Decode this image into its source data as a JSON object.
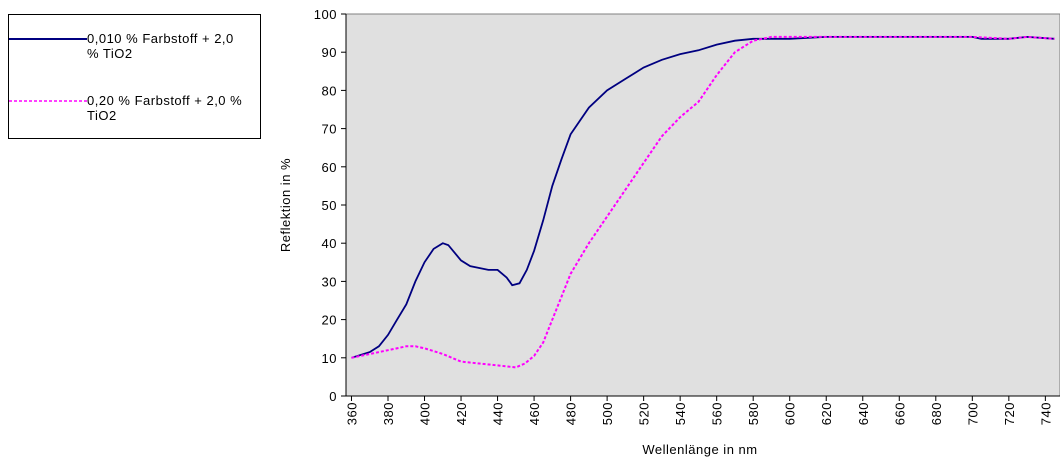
{
  "chart_data": {
    "type": "line",
    "xlabel": "Wellenlänge in nm",
    "ylabel": "Reflektion in %",
    "xlim": [
      357,
      748
    ],
    "ylim": [
      0,
      100
    ],
    "xticks": [
      360,
      380,
      400,
      420,
      440,
      460,
      480,
      500,
      520,
      540,
      560,
      580,
      600,
      620,
      640,
      660,
      680,
      700,
      720,
      740
    ],
    "yticks": [
      0,
      10,
      20,
      30,
      40,
      50,
      60,
      70,
      80,
      90,
      100
    ],
    "series": [
      {
        "name": "0,010 % Farbstoff + 2,0 % TiO2",
        "color": "#000080",
        "dash": false,
        "x": [
          360,
          370,
          375,
          380,
          385,
          390,
          395,
          400,
          405,
          410,
          413,
          420,
          425,
          430,
          435,
          440,
          445,
          448,
          452,
          456,
          460,
          465,
          470,
          475,
          480,
          485,
          490,
          500,
          510,
          520,
          530,
          540,
          550,
          560,
          570,
          580,
          600,
          620,
          640,
          660,
          680,
          700,
          705,
          720,
          730,
          745
        ],
        "values": [
          10,
          11.5,
          13,
          16,
          20,
          24,
          30,
          35,
          38.5,
          40,
          39.5,
          35.5,
          34,
          33.5,
          33,
          33,
          31,
          29,
          29.5,
          33,
          38,
          46,
          55,
          62,
          68.5,
          72,
          75.5,
          80,
          83,
          86,
          88,
          89.5,
          90.5,
          92,
          93,
          93.5,
          93.5,
          94,
          94,
          94,
          94,
          94,
          93.5,
          93.5,
          94,
          93.5
        ]
      },
      {
        "name": "0,20 % Farbstoff + 2,0 % TiO2",
        "color": "#ff00ff",
        "dash": true,
        "x": [
          360,
          370,
          380,
          390,
          395,
          400,
          410,
          420,
          430,
          440,
          450,
          455,
          460,
          465,
          470,
          475,
          480,
          490,
          500,
          510,
          520,
          530,
          540,
          550,
          560,
          570,
          580,
          590,
          600,
          620,
          640,
          660,
          680,
          700,
          720,
          730,
          745
        ],
        "values": [
          10,
          11,
          12,
          13,
          13,
          12.5,
          11,
          9,
          8.5,
          8,
          7.5,
          8.5,
          10.5,
          14,
          20,
          26,
          32,
          40,
          47,
          54,
          61,
          68,
          73,
          77,
          84,
          90,
          93,
          94,
          94,
          94,
          94,
          94,
          94,
          94,
          93.5,
          94,
          93.5
        ]
      }
    ]
  }
}
